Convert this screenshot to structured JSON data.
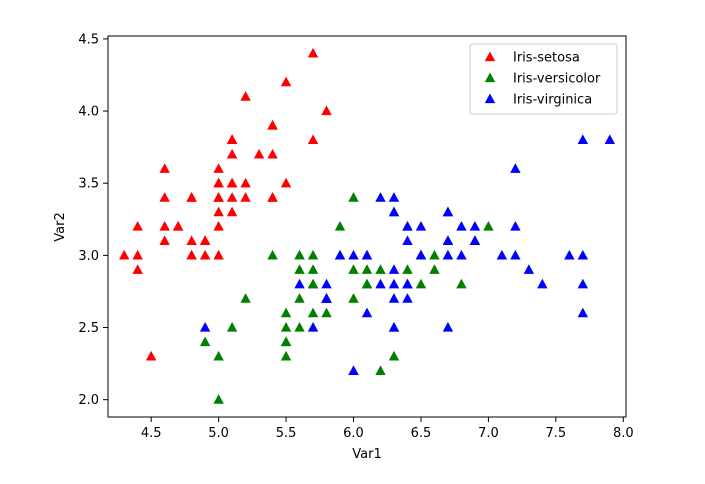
{
  "chart_data": {
    "type": "scatter",
    "title": "",
    "xlabel": "Var1",
    "ylabel": "Var2",
    "xlim": [
      4.18,
      8.02
    ],
    "ylim": [
      1.88,
      4.52
    ],
    "xticks": [
      4.5,
      5.0,
      5.5,
      6.0,
      6.5,
      7.0,
      7.5,
      8.0
    ],
    "yticks": [
      2.0,
      2.5,
      3.0,
      3.5,
      4.0,
      4.5
    ],
    "xtick_labels": [
      "4.5",
      "5.0",
      "5.5",
      "6.0",
      "6.5",
      "7.0",
      "7.5",
      "8.0"
    ],
    "ytick_labels": [
      "2.0",
      "2.5",
      "3.0",
      "3.5",
      "4.0",
      "4.5"
    ],
    "grid": false,
    "marker": "triangle-up",
    "legend_position": "top-right",
    "series": [
      {
        "name": "Iris-setosa",
        "color": "#ff0000",
        "points": [
          [
            5.1,
            3.5
          ],
          [
            4.9,
            3.0
          ],
          [
            4.7,
            3.2
          ],
          [
            4.6,
            3.1
          ],
          [
            5.0,
            3.6
          ],
          [
            5.4,
            3.9
          ],
          [
            4.6,
            3.4
          ],
          [
            5.0,
            3.4
          ],
          [
            4.4,
            2.9
          ],
          [
            4.9,
            3.1
          ],
          [
            5.4,
            3.7
          ],
          [
            4.8,
            3.4
          ],
          [
            4.8,
            3.0
          ],
          [
            4.3,
            3.0
          ],
          [
            5.8,
            4.0
          ],
          [
            5.7,
            4.4
          ],
          [
            5.4,
            3.9
          ],
          [
            5.1,
            3.5
          ],
          [
            5.7,
            3.8
          ],
          [
            5.1,
            3.8
          ],
          [
            5.4,
            3.4
          ],
          [
            5.1,
            3.7
          ],
          [
            4.6,
            3.6
          ],
          [
            5.1,
            3.3
          ],
          [
            4.8,
            3.4
          ],
          [
            5.0,
            3.0
          ],
          [
            5.0,
            3.4
          ],
          [
            5.2,
            3.5
          ],
          [
            5.2,
            3.4
          ],
          [
            4.7,
            3.2
          ],
          [
            4.8,
            3.1
          ],
          [
            5.4,
            3.4
          ],
          [
            5.2,
            4.1
          ],
          [
            5.5,
            4.2
          ],
          [
            4.9,
            3.1
          ],
          [
            5.0,
            3.2
          ],
          [
            5.5,
            3.5
          ],
          [
            4.9,
            3.1
          ],
          [
            4.4,
            3.0
          ],
          [
            5.1,
            3.4
          ],
          [
            5.0,
            3.5
          ],
          [
            4.5,
            2.3
          ],
          [
            4.4,
            3.2
          ],
          [
            5.0,
            3.5
          ],
          [
            5.1,
            3.8
          ],
          [
            4.8,
            3.0
          ],
          [
            5.1,
            3.8
          ],
          [
            4.6,
            3.2
          ],
          [
            5.3,
            3.7
          ],
          [
            5.0,
            3.3
          ]
        ]
      },
      {
        "name": "Iris-versicolor",
        "color": "#008000",
        "points": [
          [
            7.0,
            3.2
          ],
          [
            6.4,
            3.2
          ],
          [
            6.9,
            3.1
          ],
          [
            5.5,
            2.3
          ],
          [
            6.5,
            2.8
          ],
          [
            5.7,
            2.8
          ],
          [
            6.3,
            3.3
          ],
          [
            4.9,
            2.4
          ],
          [
            6.6,
            2.9
          ],
          [
            5.2,
            2.7
          ],
          [
            5.0,
            2.0
          ],
          [
            5.9,
            3.0
          ],
          [
            6.0,
            2.2
          ],
          [
            6.1,
            2.9
          ],
          [
            5.6,
            2.9
          ],
          [
            6.7,
            3.1
          ],
          [
            5.6,
            3.0
          ],
          [
            5.8,
            2.7
          ],
          [
            6.2,
            2.2
          ],
          [
            5.6,
            2.5
          ],
          [
            5.9,
            3.2
          ],
          [
            6.1,
            2.8
          ],
          [
            6.3,
            2.5
          ],
          [
            6.1,
            2.8
          ],
          [
            6.4,
            2.9
          ],
          [
            6.6,
            3.0
          ],
          [
            6.8,
            2.8
          ],
          [
            6.7,
            3.0
          ],
          [
            6.0,
            2.9
          ],
          [
            5.7,
            2.6
          ],
          [
            5.5,
            2.4
          ],
          [
            5.5,
            2.4
          ],
          [
            5.8,
            2.7
          ],
          [
            6.0,
            2.7
          ],
          [
            5.4,
            3.0
          ],
          [
            6.0,
            3.4
          ],
          [
            6.7,
            3.1
          ],
          [
            6.3,
            2.3
          ],
          [
            5.6,
            3.0
          ],
          [
            5.5,
            2.5
          ],
          [
            5.5,
            2.6
          ],
          [
            6.1,
            3.0
          ],
          [
            5.8,
            2.6
          ],
          [
            5.0,
            2.3
          ],
          [
            5.6,
            2.7
          ],
          [
            5.7,
            3.0
          ],
          [
            5.7,
            2.9
          ],
          [
            6.2,
            2.9
          ],
          [
            5.1,
            2.5
          ],
          [
            5.7,
            2.8
          ]
        ]
      },
      {
        "name": "Iris-virginica",
        "color": "#0000ff",
        "points": [
          [
            6.3,
            3.3
          ],
          [
            5.8,
            2.7
          ],
          [
            7.1,
            3.0
          ],
          [
            6.3,
            2.9
          ],
          [
            6.5,
            3.0
          ],
          [
            7.6,
            3.0
          ],
          [
            4.9,
            2.5
          ],
          [
            7.3,
            2.9
          ],
          [
            6.7,
            2.5
          ],
          [
            7.2,
            3.6
          ],
          [
            6.5,
            3.2
          ],
          [
            6.4,
            2.7
          ],
          [
            6.8,
            3.0
          ],
          [
            5.7,
            2.5
          ],
          [
            5.8,
            2.8
          ],
          [
            6.4,
            3.2
          ],
          [
            6.5,
            3.0
          ],
          [
            7.7,
            3.8
          ],
          [
            7.7,
            2.6
          ],
          [
            6.0,
            2.2
          ],
          [
            6.9,
            3.2
          ],
          [
            5.6,
            2.8
          ],
          [
            7.7,
            2.8
          ],
          [
            6.3,
            2.7
          ],
          [
            6.7,
            3.3
          ],
          [
            7.2,
            3.2
          ],
          [
            6.2,
            2.8
          ],
          [
            6.1,
            3.0
          ],
          [
            6.4,
            2.8
          ],
          [
            7.2,
            3.0
          ],
          [
            7.4,
            2.8
          ],
          [
            7.9,
            3.8
          ],
          [
            6.4,
            2.8
          ],
          [
            6.3,
            2.8
          ],
          [
            6.1,
            2.6
          ],
          [
            7.7,
            3.0
          ],
          [
            6.3,
            3.4
          ],
          [
            6.4,
            3.1
          ],
          [
            6.0,
            3.0
          ],
          [
            6.9,
            3.1
          ],
          [
            6.7,
            3.1
          ],
          [
            6.9,
            3.1
          ],
          [
            5.8,
            2.7
          ],
          [
            6.8,
            3.2
          ],
          [
            6.7,
            3.3
          ],
          [
            6.7,
            3.0
          ],
          [
            6.3,
            2.5
          ],
          [
            6.5,
            3.0
          ],
          [
            6.2,
            3.4
          ],
          [
            5.9,
            3.0
          ]
        ]
      }
    ]
  }
}
